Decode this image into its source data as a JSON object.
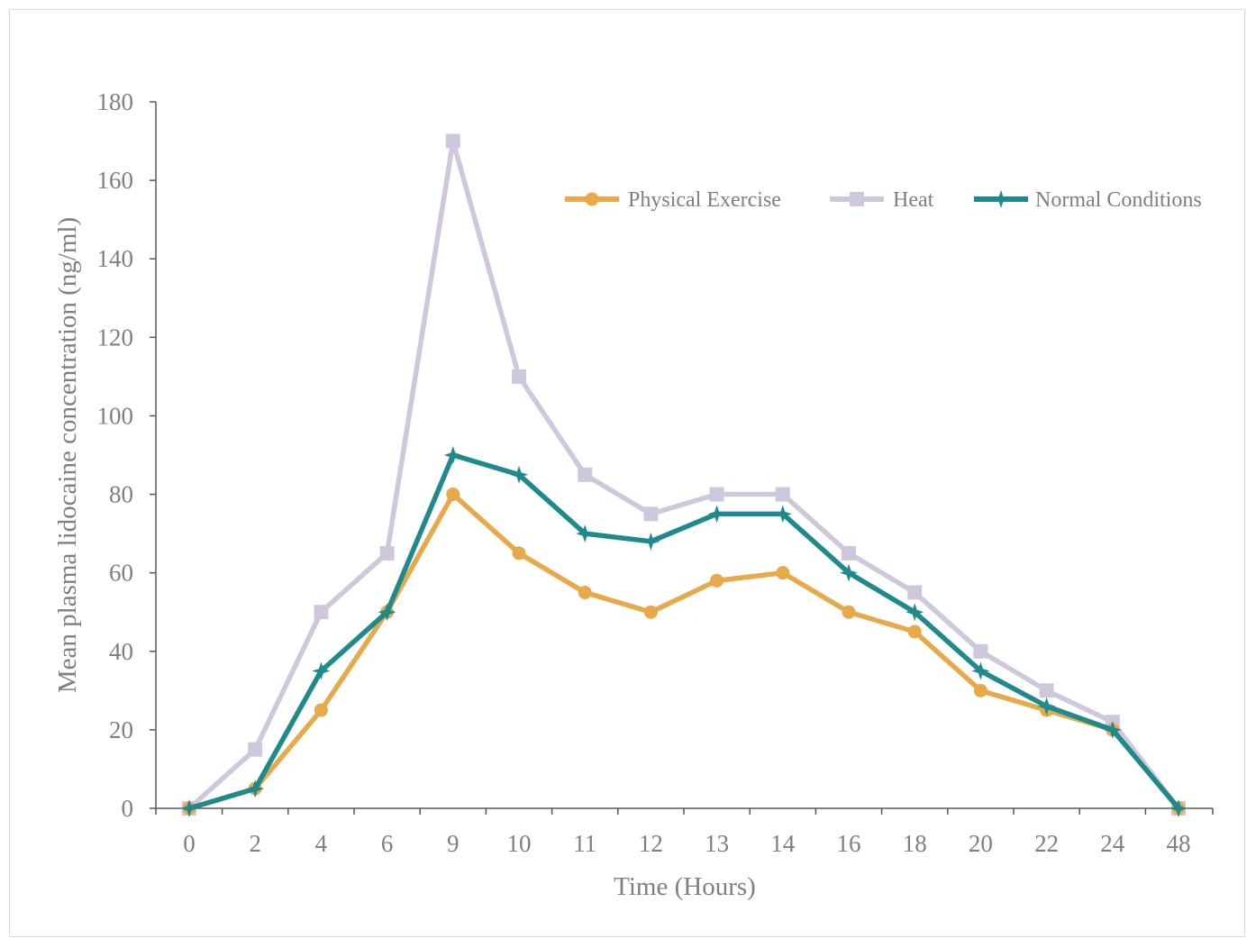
{
  "chart_data": {
    "type": "line",
    "xlabel": "Time (Hours)",
    "ylabel": "Mean plasma lidocaine concentration (ng/ml)",
    "categories": [
      "0",
      "2",
      "4",
      "6",
      "9",
      "10",
      "11",
      "12",
      "13",
      "14",
      "16",
      "18",
      "20",
      "22",
      "24",
      "48"
    ],
    "ylim": [
      0,
      180
    ],
    "yticks": [
      0,
      20,
      40,
      60,
      80,
      100,
      120,
      140,
      160,
      180
    ],
    "grid": false,
    "legend_position": "top-right",
    "series": [
      {
        "name": "Physical Exercise",
        "color": "#E8A94A",
        "marker": "circle",
        "values": [
          0,
          5,
          25,
          50,
          80,
          65,
          55,
          50,
          58,
          60,
          50,
          45,
          30,
          25,
          20,
          0
        ]
      },
      {
        "name": "Heat",
        "color": "#CFC7DC",
        "marker": "square",
        "values": [
          0,
          15,
          50,
          65,
          170,
          110,
          85,
          75,
          80,
          80,
          65,
          55,
          40,
          30,
          22,
          0
        ]
      },
      {
        "name": "Normal Conditions",
        "color": "#1F8A8C",
        "marker": "star",
        "values": [
          0,
          5,
          35,
          50,
          90,
          85,
          70,
          68,
          75,
          75,
          60,
          50,
          35,
          26,
          20,
          0
        ]
      }
    ]
  },
  "colors": {
    "axis": "#595959",
    "text": "#7f7f7f",
    "frame": "#d9d9d9"
  }
}
